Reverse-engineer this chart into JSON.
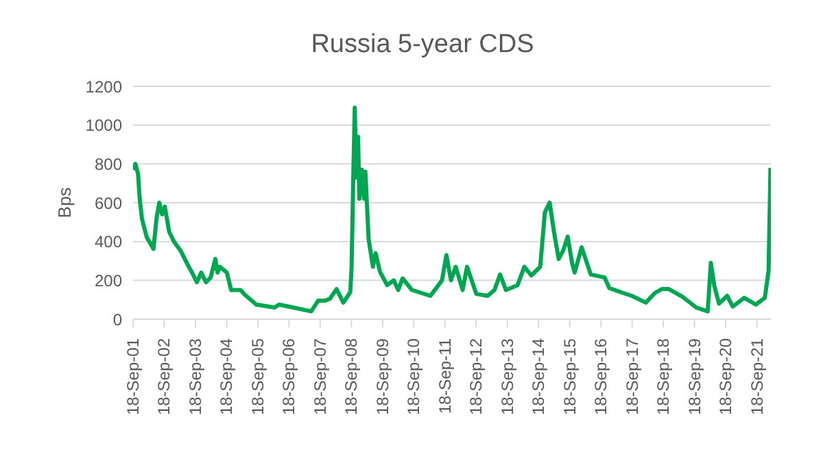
{
  "chart_data": {
    "type": "line",
    "title": "Russia 5-year CDS",
    "ylabel": "Bps",
    "x": [
      "2001-09-18",
      "2001-10-15",
      "2001-11-15",
      "2001-12-05",
      "2002-01-01",
      "2002-02-25",
      "2002-05-15",
      "2002-06-20",
      "2002-07-22",
      "2002-08-25",
      "2002-09-25",
      "2002-11-15",
      "2003-01-10",
      "2003-04-01",
      "2003-06-20",
      "2003-08-10",
      "2003-10-05",
      "2003-11-25",
      "2004-01-20",
      "2004-03-15",
      "2004-05-08",
      "2004-06-03",
      "2004-07-01",
      "2004-09-20",
      "2004-11-10",
      "2005-02-28",
      "2005-04-20",
      "2005-09-01",
      "2006-04-01",
      "2006-05-25",
      "2006-11-05",
      "2007-06-05",
      "2007-08-25",
      "2007-11-15",
      "2008-01-10",
      "2008-03-28",
      "2008-06-15",
      "2008-09-05",
      "2008-09-20",
      "2008-10-12",
      "2008-10-27",
      "2008-11-14",
      "2008-12-05",
      "2008-12-20",
      "2009-01-18",
      "2009-02-14",
      "2009-02-28",
      "2009-04-08",
      "2009-05-28",
      "2009-06-28",
      "2009-08-18",
      "2009-11-10",
      "2010-01-26",
      "2010-03-20",
      "2010-05-10",
      "2010-08-28",
      "2011-04-01",
      "2011-08-15",
      "2011-10-05",
      "2011-11-28",
      "2012-01-22",
      "2012-04-12",
      "2012-06-03",
      "2012-09-20",
      "2013-01-30",
      "2013-04-20",
      "2013-06-25",
      "2013-09-01",
      "2014-01-15",
      "2014-04-05",
      "2014-06-25",
      "2014-10-08",
      "2014-12-01",
      "2015-01-26",
      "2015-03-18",
      "2015-05-12",
      "2015-07-05",
      "2015-08-25",
      "2015-10-18",
      "2015-11-15",
      "2016-02-05",
      "2016-05-22",
      "2016-10-30",
      "2016-12-25",
      "2017-06-02",
      "2017-09-15",
      "2018-02-25",
      "2018-06-12",
      "2018-09-02",
      "2018-11-22",
      "2019-05-01",
      "2019-10-08",
      "2020-02-20",
      "2020-03-28",
      "2020-05-08",
      "2020-07-01",
      "2020-10-05",
      "2020-12-10",
      "2021-04-22",
      "2021-09-05",
      "2021-12-20",
      "2022-02-02",
      "2022-02-24"
    ],
    "series": [
      {
        "color": "#00a651",
        "values": [
          770,
          800,
          750,
          620,
          515,
          423,
          362,
          520,
          600,
          540,
          580,
          450,
          400,
          350,
          280,
          240,
          190,
          240,
          190,
          215,
          310,
          240,
          270,
          240,
          150,
          150,
          125,
          75,
          60,
          75,
          60,
          40,
          95,
          95,
          105,
          155,
          85,
          140,
          270,
          780,
          1090,
          730,
          940,
          620,
          770,
          620,
          760,
          410,
          270,
          340,
          245,
          175,
          200,
          150,
          210,
          150,
          120,
          200,
          330,
          200,
          270,
          150,
          270,
          130,
          120,
          150,
          230,
          150,
          175,
          270,
          225,
          270,
          550,
          600,
          450,
          310,
          355,
          425,
          285,
          240,
          370,
          230,
          215,
          160,
          135,
          120,
          85,
          135,
          155,
          155,
          115,
          60,
          40,
          290,
          170,
          80,
          120,
          65,
          110,
          75,
          110,
          250,
          780
        ]
      }
    ],
    "xlim": [
      "2001-09-18",
      "2022-03-01"
    ],
    "xticks": [
      {
        "value": "2001-09-18",
        "label": "18-Sep-01"
      },
      {
        "value": "2002-09-18",
        "label": "18-Sep-02"
      },
      {
        "value": "2003-09-18",
        "label": "18-Sep-03"
      },
      {
        "value": "2004-09-18",
        "label": "18-Sep-04"
      },
      {
        "value": "2005-09-18",
        "label": "18-Sep-05"
      },
      {
        "value": "2006-09-18",
        "label": "18-Sep-06"
      },
      {
        "value": "2007-09-18",
        "label": "18-Sep-07"
      },
      {
        "value": "2008-09-18",
        "label": "18-Sep-08"
      },
      {
        "value": "2009-09-18",
        "label": "18-Sep-09"
      },
      {
        "value": "2010-09-18",
        "label": "18-Sep-10"
      },
      {
        "value": "2011-09-18",
        "label": "18-Sep-11"
      },
      {
        "value": "2012-09-18",
        "label": "18-Sep-12"
      },
      {
        "value": "2013-09-18",
        "label": "18-Sep-13"
      },
      {
        "value": "2014-09-18",
        "label": "18-Sep-14"
      },
      {
        "value": "2015-09-18",
        "label": "18-Sep-15"
      },
      {
        "value": "2016-09-18",
        "label": "18-Sep-16"
      },
      {
        "value": "2017-09-18",
        "label": "18-Sep-17"
      },
      {
        "value": "2018-09-18",
        "label": "18-Sep-18"
      },
      {
        "value": "2019-09-18",
        "label": "18-Sep-19"
      },
      {
        "value": "2020-09-18",
        "label": "18-Sep-20"
      },
      {
        "value": "2021-09-18",
        "label": "18-Sep-21"
      }
    ],
    "ylim": [
      0,
      1200
    ],
    "yticks": [
      0,
      200,
      400,
      600,
      800,
      1000,
      1200
    ],
    "grid": "y",
    "marker": "none",
    "line_style": "solid"
  }
}
